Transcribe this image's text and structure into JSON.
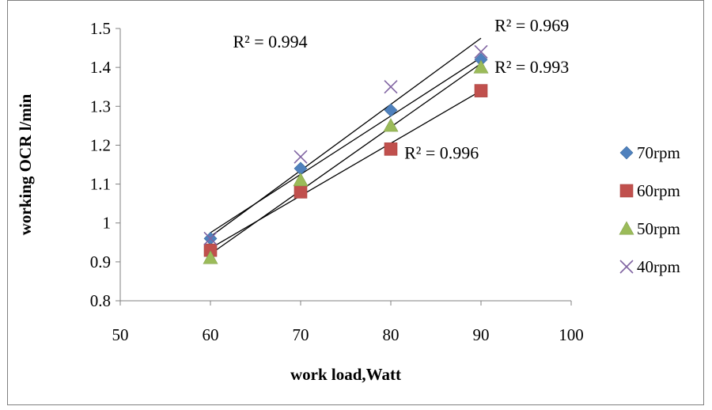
{
  "chart_data": {
    "type": "scatter",
    "xlabel": "work load,Watt",
    "ylabel": "working OCR l/min",
    "xlim": [
      50,
      100
    ],
    "ylim": [
      0.8,
      1.5
    ],
    "x_ticks": [
      "50",
      "60",
      "70",
      "80",
      "90",
      "100"
    ],
    "y_ticks": [
      "0.8",
      "0.9",
      "1",
      "1.1",
      "1.2",
      "1.3",
      "1.4",
      "1.5"
    ],
    "grid": false,
    "legend_position": "right",
    "series": [
      {
        "name": "70rpm",
        "marker": "diamond",
        "color": "#4F81BD",
        "x": [
          60,
          70,
          80,
          90
        ],
        "y": [
          0.96,
          1.14,
          1.29,
          1.42
        ]
      },
      {
        "name": "60rpm",
        "marker": "square",
        "color": "#C0504D",
        "x": [
          60,
          70,
          80,
          90
        ],
        "y": [
          0.93,
          1.08,
          1.19,
          1.34
        ]
      },
      {
        "name": "50rpm",
        "marker": "triangle",
        "color": "#9BBB59",
        "x": [
          60,
          70,
          80,
          90
        ],
        "y": [
          0.91,
          1.11,
          1.25,
          1.4
        ]
      },
      {
        "name": "40rpm",
        "marker": "cross",
        "color": "#8064A2",
        "x": [
          60,
          70,
          80,
          90
        ],
        "y": [
          0.96,
          1.17,
          1.35,
          1.44
        ]
      }
    ],
    "trendlines": [
      {
        "type": "linear",
        "color": "#000000",
        "x": [
          60,
          90
        ],
        "y": [
          0.975,
          1.425
        ]
      },
      {
        "type": "linear",
        "color": "#000000",
        "x": [
          60,
          90
        ],
        "y": [
          0.935,
          1.34
        ]
      },
      {
        "type": "linear",
        "color": "#000000",
        "x": [
          60,
          90
        ],
        "y": [
          0.92,
          1.41
        ]
      },
      {
        "type": "linear",
        "color": "#000000",
        "x": [
          60,
          90
        ],
        "y": [
          0.965,
          1.475
        ]
      }
    ],
    "annotations": [
      {
        "text": "R² = 0.994",
        "x": 62.5,
        "y": 1.465
      },
      {
        "text": "R² = 0.969",
        "x": 91.5,
        "y": 1.507
      },
      {
        "text": "R² = 0.993",
        "x": 91.5,
        "y": 1.4
      },
      {
        "text": "R² = 0.996",
        "x": 81.5,
        "y": 1.18
      }
    ]
  }
}
